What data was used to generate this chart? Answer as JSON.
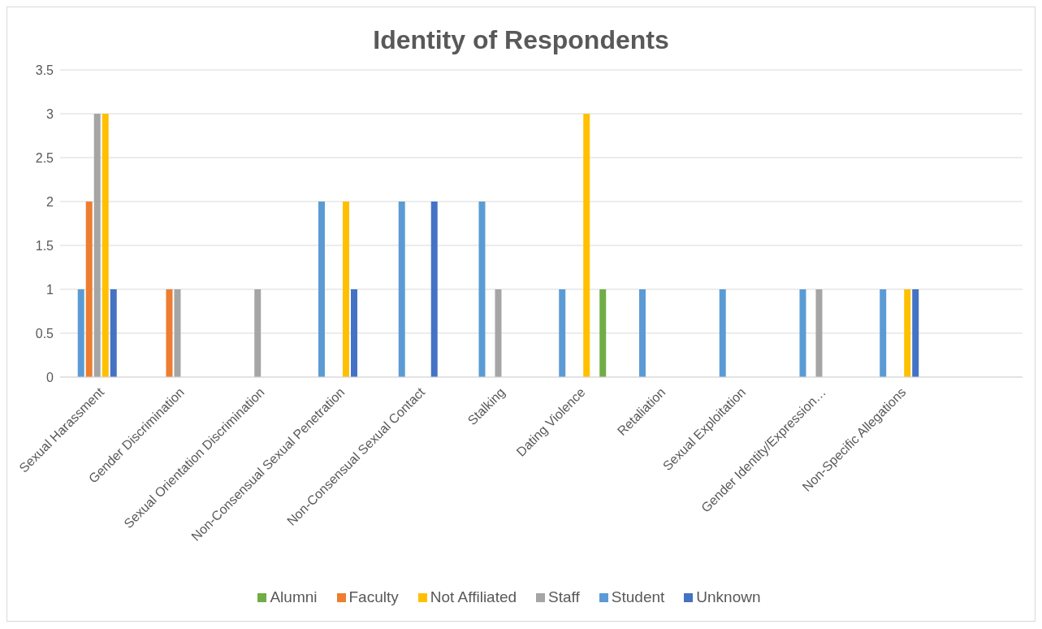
{
  "chart_data": {
    "type": "bar",
    "title": "Identity of Respondents",
    "categories": [
      "Sexual Harassment",
      "Gender Discrimination",
      "Sexual Orientation Discrimination",
      "Non-Consensual Sexual Penetration",
      "Non-Consensual Sexual Contact",
      "Stalking",
      "Dating Violence",
      "Retaliation",
      "Sexual Exploitation",
      "Gender Identity/Expression…",
      "Non-Specific Allegations",
      null
    ],
    "series": [
      {
        "name": "Student",
        "color": "#5b9bd5",
        "values": [
          1,
          null,
          null,
          2,
          2,
          2,
          1,
          1,
          1,
          1,
          1,
          null
        ]
      },
      {
        "name": "Faculty",
        "color": "#ed7d31",
        "values": [
          2,
          1,
          null,
          null,
          null,
          null,
          null,
          null,
          null,
          null,
          null,
          null
        ]
      },
      {
        "name": "Staff",
        "color": "#a5a5a5",
        "values": [
          3,
          1,
          1,
          null,
          null,
          1,
          null,
          null,
          null,
          1,
          null,
          null
        ]
      },
      {
        "name": "Not Affiliated",
        "color": "#ffc000",
        "values": [
          3,
          null,
          null,
          2,
          null,
          null,
          3,
          null,
          null,
          null,
          1,
          null
        ]
      },
      {
        "name": "Unknown",
        "color": "#4472c4",
        "values": [
          1,
          null,
          null,
          1,
          2,
          null,
          null,
          null,
          null,
          null,
          1,
          null
        ]
      },
      {
        "name": "Alumni",
        "color": "#70ad47",
        "values": [
          null,
          null,
          null,
          null,
          null,
          null,
          1,
          null,
          null,
          null,
          null,
          null
        ]
      }
    ],
    "ylim": [
      0,
      3.5
    ],
    "yticks": [
      0,
      0.5,
      1,
      1.5,
      2,
      2.5,
      3,
      3.5
    ],
    "grid": "y",
    "legend": "bottom"
  }
}
